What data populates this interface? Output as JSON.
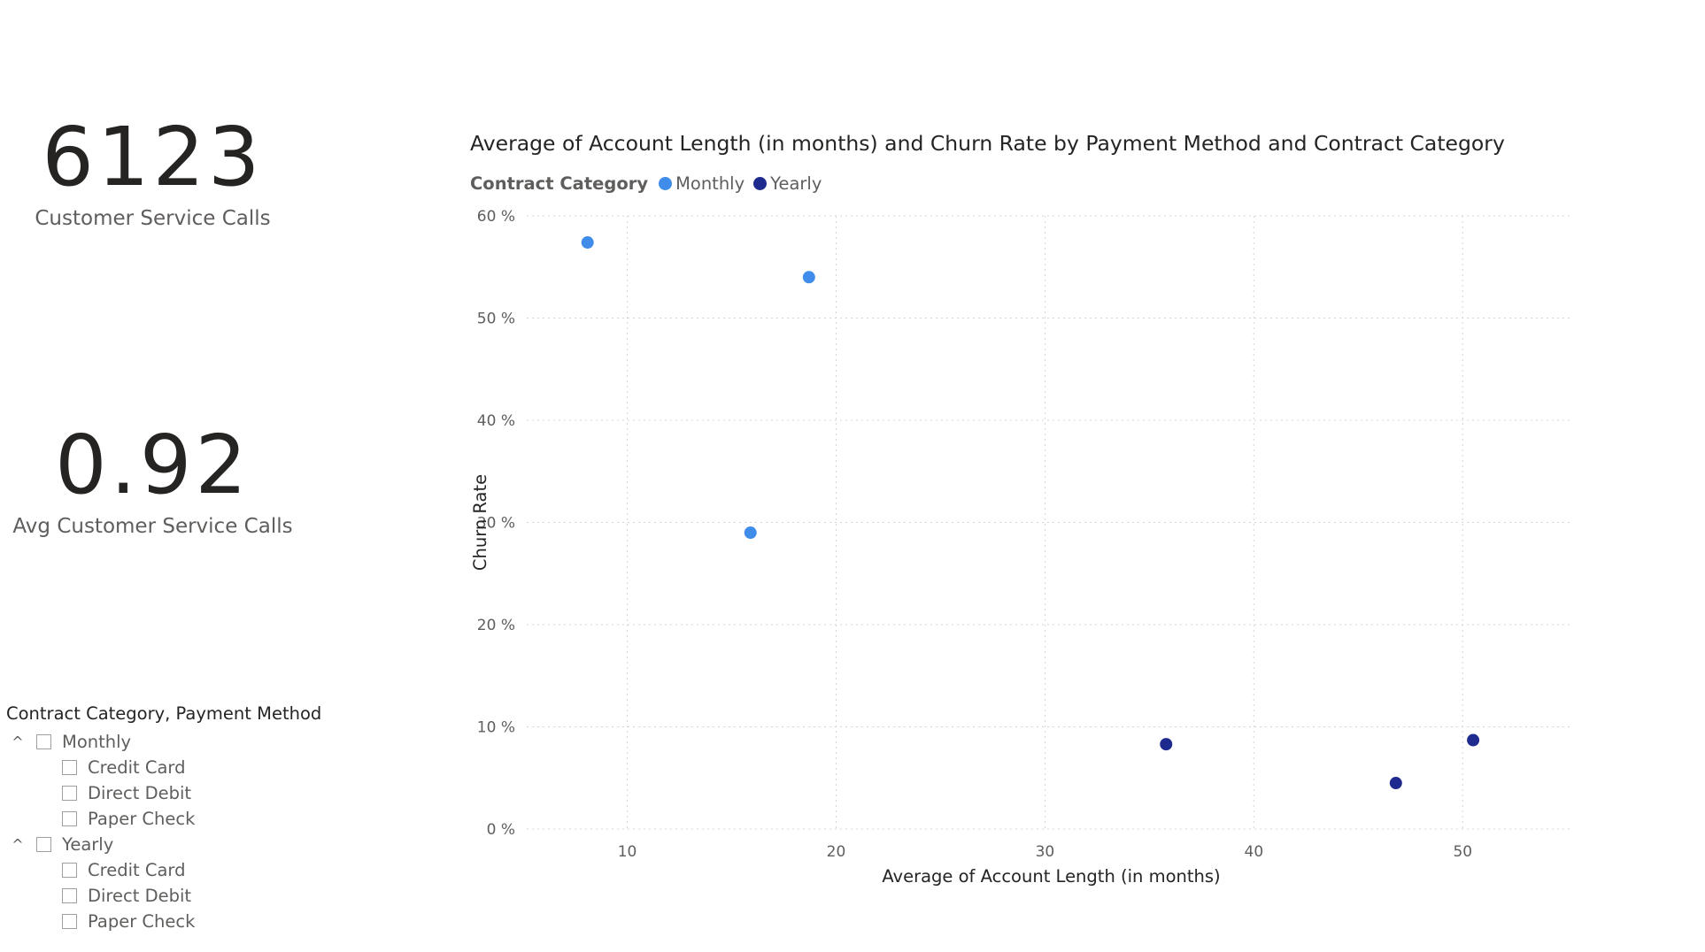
{
  "cards": [
    {
      "value": "6123",
      "label": "Customer Service Calls"
    },
    {
      "value": "0.92",
      "label": "Avg Customer Service Calls"
    }
  ],
  "slicer": {
    "title": "Contract Category, Payment Method",
    "groups": [
      {
        "label": "Monthly",
        "expanded_icon": "^",
        "items": [
          "Credit Card",
          "Direct Debit",
          "Paper Check"
        ]
      },
      {
        "label": "Yearly",
        "expanded_icon": "^",
        "items": [
          "Credit Card",
          "Direct Debit",
          "Paper Check"
        ]
      }
    ]
  },
  "colors": {
    "monthly": "#3f8ceb",
    "yearly": "#1f2a8f"
  },
  "chart_data": {
    "type": "scatter",
    "title": "Average of Account Length (in months) and Churn Rate by Payment Method and Contract Category",
    "xlabel": "Average of Account Length (in months)",
    "ylabel": "Churn Rate",
    "legend_title": "Contract Category",
    "legend_position": "top-left",
    "xlim": [
      5.4,
      55.2
    ],
    "ylim": [
      0,
      60
    ],
    "x_ticks": [
      10,
      20,
      30,
      40,
      50
    ],
    "y_ticks": [
      0,
      10,
      20,
      30,
      40,
      50,
      60
    ],
    "y_tick_labels": [
      "0 %",
      "10 %",
      "20 %",
      "30 %",
      "40 %",
      "50 %",
      "60 %"
    ],
    "grid": true,
    "series": [
      {
        "name": "Monthly",
        "color": "#3f8ceb",
        "points": [
          {
            "x": 8.1,
            "y": 57.4
          },
          {
            "x": 18.7,
            "y": 54.0
          },
          {
            "x": 15.9,
            "y": 29.0
          }
        ]
      },
      {
        "name": "Yearly",
        "color": "#1f2a8f",
        "points": [
          {
            "x": 35.8,
            "y": 8.3
          },
          {
            "x": 46.8,
            "y": 4.5
          },
          {
            "x": 50.5,
            "y": 8.7
          }
        ]
      }
    ]
  }
}
